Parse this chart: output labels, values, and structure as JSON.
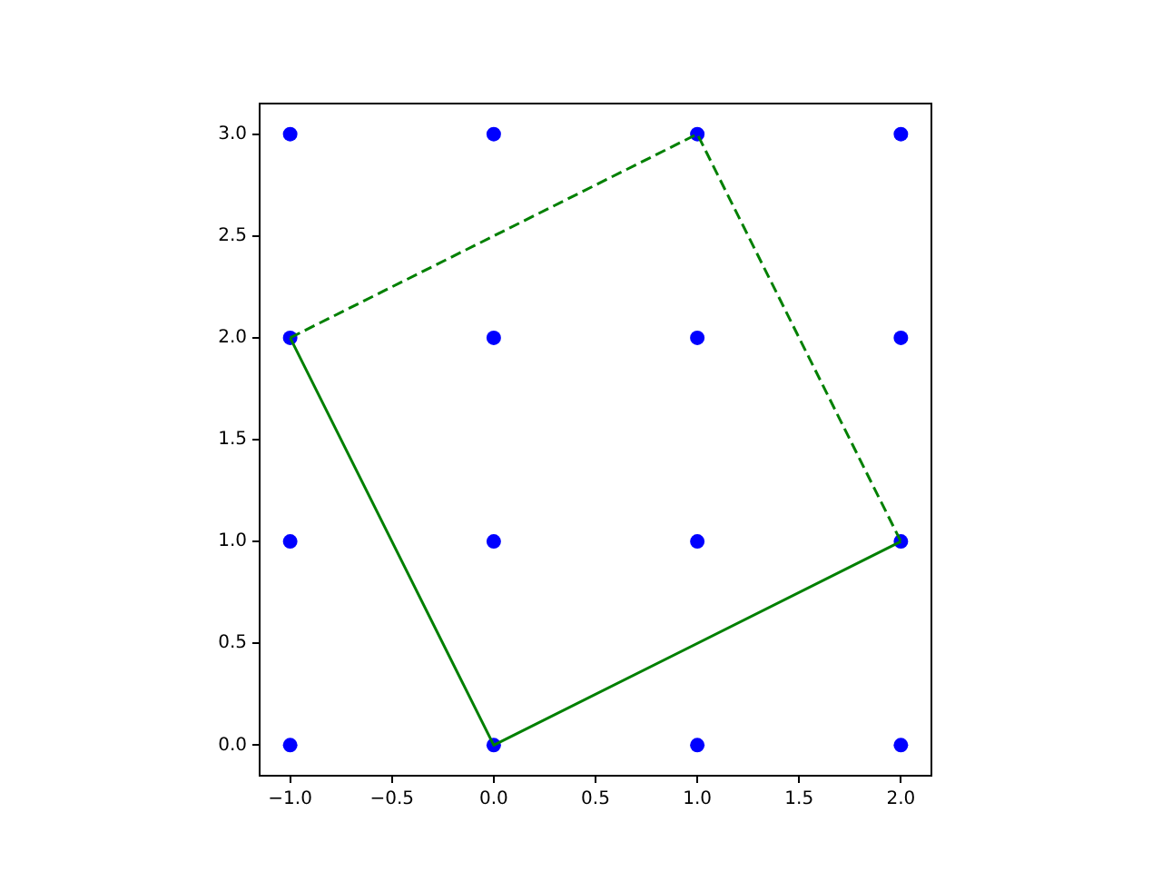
{
  "chart_data": {
    "type": "scatter",
    "grid": false,
    "legend": false,
    "xlim": [
      -1.15,
      2.15
    ],
    "ylim": [
      -0.15,
      3.15
    ],
    "xticks": [
      {
        "value": -1,
        "label": "−1.0"
      },
      {
        "value": -0.5,
        "label": "−0.5"
      },
      {
        "value": 0,
        "label": "0.0"
      },
      {
        "value": 0.5,
        "label": "0.5"
      },
      {
        "value": 1,
        "label": "1.0"
      },
      {
        "value": 1.5,
        "label": "1.5"
      },
      {
        "value": 2,
        "label": "2.0"
      }
    ],
    "yticks": [
      {
        "value": 0,
        "label": "0.0"
      },
      {
        "value": 0.5,
        "label": "0.5"
      },
      {
        "value": 1,
        "label": "1.0"
      },
      {
        "value": 1.5,
        "label": "1.5"
      },
      {
        "value": 2,
        "label": "2.0"
      },
      {
        "value": 2.5,
        "label": "2.5"
      },
      {
        "value": 3,
        "label": "3.0"
      }
    ],
    "series": [
      {
        "type": "scatter",
        "color": "#0000ff",
        "marker": "circle",
        "x": [
          -1,
          0,
          1,
          2,
          -1,
          0,
          1,
          2,
          -1,
          0,
          1,
          2,
          -1,
          0,
          1,
          2
        ],
        "values": [
          0,
          0,
          0,
          0,
          1,
          1,
          1,
          1,
          2,
          2,
          2,
          2,
          3,
          3,
          3,
          3
        ]
      },
      {
        "type": "line",
        "color": "#008000",
        "marker": "none",
        "line_style": "solid",
        "x": [
          -1,
          0,
          2
        ],
        "values": [
          2,
          0,
          1
        ]
      },
      {
        "type": "line",
        "color": "#008000",
        "marker": "none",
        "line_style": "dashed",
        "x": [
          -1,
          1,
          2
        ],
        "values": [
          2,
          3,
          1
        ]
      }
    ]
  }
}
